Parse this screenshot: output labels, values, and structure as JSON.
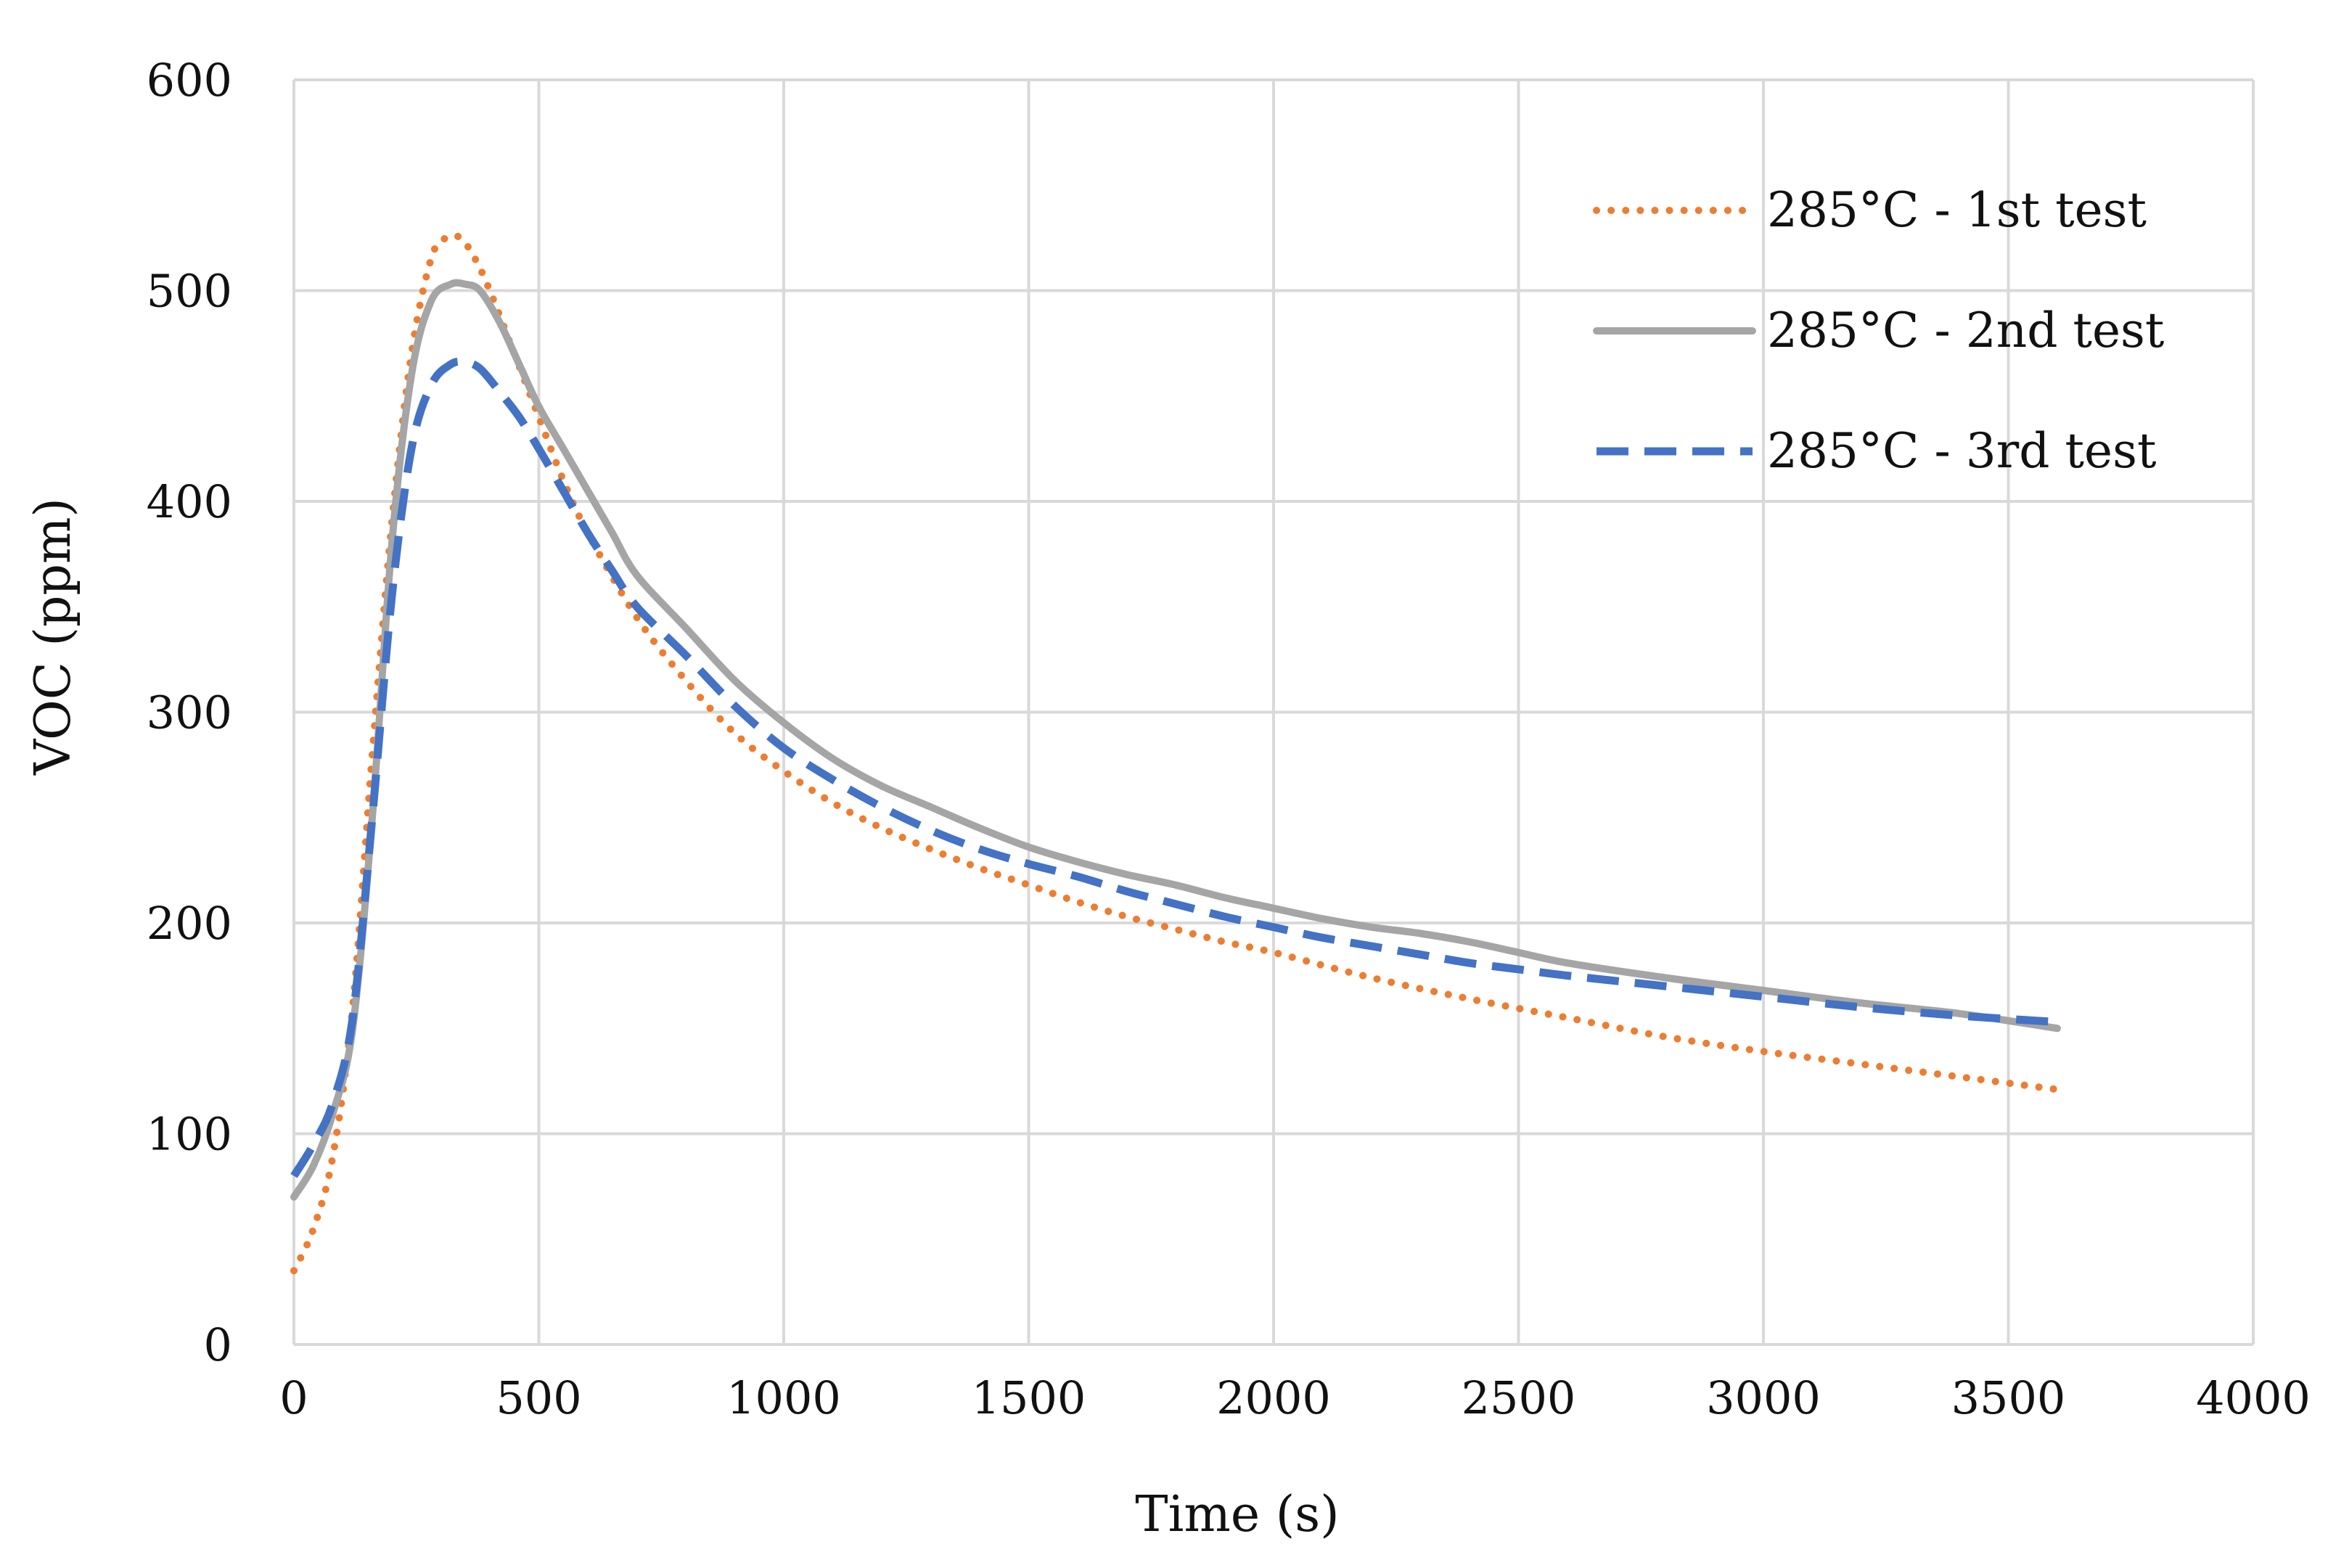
{
  "chart_data": {
    "type": "line",
    "title": "",
    "xlabel": "Time (s)",
    "ylabel": "VOC (ppm)",
    "xlim": [
      0,
      4000
    ],
    "ylim": [
      0,
      600
    ],
    "grid": true,
    "legend_position": "top-right",
    "x_ticks": [
      {
        "value": 0,
        "label": "0"
      },
      {
        "value": 500,
        "label": "500"
      },
      {
        "value": 1000,
        "label": "1000"
      },
      {
        "value": 1500,
        "label": "1500"
      },
      {
        "value": 2000,
        "label": "2000"
      },
      {
        "value": 2500,
        "label": "2500"
      },
      {
        "value": 3000,
        "label": "3000"
      },
      {
        "value": 3500,
        "label": "3500"
      },
      {
        "value": 4000,
        "label": "4000"
      }
    ],
    "y_ticks": [
      {
        "value": 0,
        "label": "0"
      },
      {
        "value": 100,
        "label": "100"
      },
      {
        "value": 200,
        "label": "200"
      },
      {
        "value": 300,
        "label": "300"
      },
      {
        "value": 400,
        "label": "400"
      },
      {
        "value": 500,
        "label": "500"
      },
      {
        "value": 600,
        "label": "600"
      }
    ],
    "series": [
      {
        "name": "285°C - 1st test",
        "color": "#ED7D31",
        "style": "dotted",
        "x": [
          0,
          40,
          80,
          120,
          160,
          200,
          240,
          280,
          310,
          340,
          370,
          400,
          450,
          500,
          550,
          600,
          700,
          800,
          900,
          1000,
          1100,
          1200,
          1300,
          1400,
          1500,
          1600,
          1700,
          1800,
          1900,
          2000,
          2200,
          2400,
          2600,
          2800,
          3000,
          3200,
          3400,
          3600
        ],
        "values": [
          35,
          55,
          90,
          160,
          280,
          390,
          470,
          515,
          525,
          525,
          515,
          500,
          470,
          440,
          410,
          385,
          345,
          315,
          290,
          272,
          257,
          245,
          235,
          226,
          218,
          210,
          203,
          197,
          191,
          186,
          174,
          164,
          155,
          146,
          139,
          133,
          127,
          121
        ]
      },
      {
        "name": "285°C - 2nd test",
        "color": "#A5A5A5",
        "style": "solid",
        "x": [
          0,
          40,
          80,
          120,
          160,
          200,
          240,
          280,
          320,
          350,
          380,
          420,
          460,
          500,
          550,
          600,
          650,
          700,
          800,
          900,
          1000,
          1100,
          1200,
          1300,
          1400,
          1500,
          1600,
          1700,
          1800,
          1900,
          2000,
          2100,
          2200,
          2300,
          2400,
          2500,
          2600,
          2800,
          3000,
          3200,
          3400,
          3600
        ],
        "values": [
          70,
          85,
          110,
          150,
          250,
          380,
          460,
          495,
          503,
          503,
          500,
          485,
          465,
          445,
          425,
          405,
          385,
          365,
          340,
          315,
          295,
          278,
          265,
          255,
          245,
          236,
          229,
          223,
          218,
          212,
          207,
          202,
          198,
          195,
          191,
          186,
          181,
          174,
          168,
          162,
          157,
          150
        ]
      },
      {
        "name": "285°C - 3rd test",
        "color": "#4472C4",
        "style": "dashed",
        "x": [
          0,
          40,
          80,
          120,
          160,
          200,
          240,
          280,
          320,
          350,
          380,
          420,
          460,
          500,
          550,
          600,
          650,
          700,
          800,
          900,
          1000,
          1100,
          1200,
          1300,
          1400,
          1500,
          1600,
          1700,
          1800,
          1900,
          2000,
          2100,
          2200,
          2300,
          2400,
          2500,
          2600,
          2800,
          3000,
          3200,
          3400,
          3600
        ],
        "values": [
          80,
          95,
          115,
          155,
          250,
          355,
          425,
          455,
          465,
          466,
          463,
          452,
          440,
          425,
          405,
          385,
          367,
          350,
          327,
          303,
          283,
          268,
          255,
          244,
          235,
          228,
          222,
          215,
          209,
          203,
          198,
          193,
          189,
          185,
          181,
          178,
          175,
          170,
          165,
          160,
          156,
          153
        ]
      }
    ]
  }
}
